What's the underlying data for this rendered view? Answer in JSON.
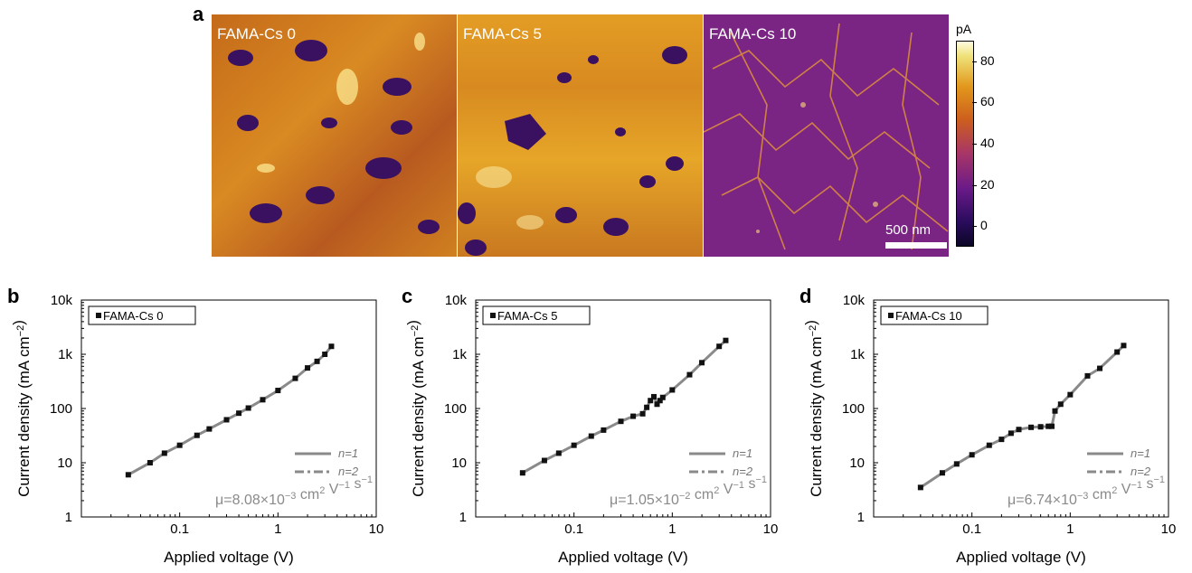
{
  "panels": {
    "a": "a",
    "b": "b",
    "c": "c",
    "d": "d"
  },
  "afm": {
    "images": [
      {
        "label": "FAMA-Cs 0"
      },
      {
        "label": "FAMA-Cs 5"
      },
      {
        "label": "FAMA-Cs 10"
      }
    ],
    "scalebar_label": "500 nm",
    "colorbar": {
      "unit": "pA",
      "ticks": [
        "80",
        "60",
        "40",
        "20",
        "0"
      ],
      "tick_values": [
        80,
        60,
        40,
        20,
        0
      ],
      "range": [
        -10,
        90
      ]
    },
    "colors": {
      "low": "#0b0626",
      "mid": "#cd5f1d",
      "high": "#fffbe0"
    }
  },
  "chart_data": [
    {
      "type": "scatter",
      "panel": "b",
      "xlabel": "Applied voltage (V)",
      "ylabel": "Current density (mA cm−2)",
      "xscale": "log",
      "yscale": "log",
      "xlim": [
        0.01,
        10
      ],
      "ylim": [
        1,
        10000
      ],
      "xticks": [
        "0.1",
        "1",
        "10"
      ],
      "xtick_values": [
        0.1,
        1,
        10
      ],
      "yticks": [
        "1",
        "10",
        "100",
        "1k",
        "10k"
      ],
      "ytick_values": [
        1,
        10,
        100,
        1000,
        10000
      ],
      "legend": {
        "entry": "FAMA-Cs 0",
        "placement": "top-left"
      },
      "fit_legend": [
        "n=1",
        "n=2"
      ],
      "annotation": "μ=8.08×10−3 cm2 V−1 s−1",
      "x": [
        0.03,
        0.05,
        0.07,
        0.1,
        0.15,
        0.2,
        0.3,
        0.4,
        0.5,
        0.7,
        1.0,
        1.5,
        2.0,
        2.5,
        3.0,
        3.5
      ],
      "y": [
        6,
        10,
        15,
        21,
        32,
        42,
        62,
        82,
        102,
        145,
        215,
        360,
        560,
        740,
        1000,
        1400
      ]
    },
    {
      "type": "scatter",
      "panel": "c",
      "xlabel": "Applied voltage (V)",
      "ylabel": "Current density (mA cm−2)",
      "xscale": "log",
      "yscale": "log",
      "xlim": [
        0.01,
        10
      ],
      "ylim": [
        1,
        10000
      ],
      "xticks": [
        "0.1",
        "1",
        "10"
      ],
      "xtick_values": [
        0.1,
        1,
        10
      ],
      "yticks": [
        "1",
        "10",
        "100",
        "1k",
        "10k"
      ],
      "ytick_values": [
        1,
        10,
        100,
        1000,
        10000
      ],
      "legend": {
        "entry": "FAMA-Cs 5",
        "placement": "top-left"
      },
      "fit_legend": [
        "n=1",
        "n=2"
      ],
      "annotation": "μ=1.05×10−2 cm2 V−1 s−1",
      "x": [
        0.03,
        0.05,
        0.07,
        0.1,
        0.15,
        0.2,
        0.3,
        0.4,
        0.5,
        0.55,
        0.6,
        0.65,
        0.7,
        0.75,
        0.8,
        1.0,
        1.5,
        2.0,
        3.0,
        3.5
      ],
      "y": [
        6.5,
        11,
        15,
        21,
        31,
        40,
        58,
        72,
        80,
        105,
        140,
        165,
        120,
        140,
        160,
        220,
        420,
        700,
        1400,
        1800
      ]
    },
    {
      "type": "scatter",
      "panel": "d",
      "xlabel": "Applied voltage (V)",
      "ylabel": "Current density (mA cm−2)",
      "xscale": "log",
      "yscale": "log",
      "xlim": [
        0.01,
        10
      ],
      "ylim": [
        1,
        10000
      ],
      "xticks": [
        "0.1",
        "1",
        "10"
      ],
      "xtick_values": [
        0.1,
        1,
        10
      ],
      "yticks": [
        "1",
        "10",
        "100",
        "1k",
        "10k"
      ],
      "ytick_values": [
        1,
        10,
        100,
        1000,
        10000
      ],
      "legend": {
        "entry": "FAMA-Cs 10",
        "placement": "top-left"
      },
      "fit_legend": [
        "n=1",
        "n=2"
      ],
      "annotation": "μ=6.74×10−3 cm2 V−1 s−1",
      "x": [
        0.03,
        0.05,
        0.07,
        0.1,
        0.15,
        0.2,
        0.25,
        0.3,
        0.4,
        0.5,
        0.6,
        0.65,
        0.7,
        0.8,
        1.0,
        1.5,
        2.0,
        3.0,
        3.5
      ],
      "y": [
        3.5,
        6.5,
        9.5,
        14,
        21,
        27,
        35,
        41,
        45,
        46,
        47,
        47,
        90,
        120,
        180,
        400,
        550,
        1100,
        1450
      ]
    }
  ]
}
